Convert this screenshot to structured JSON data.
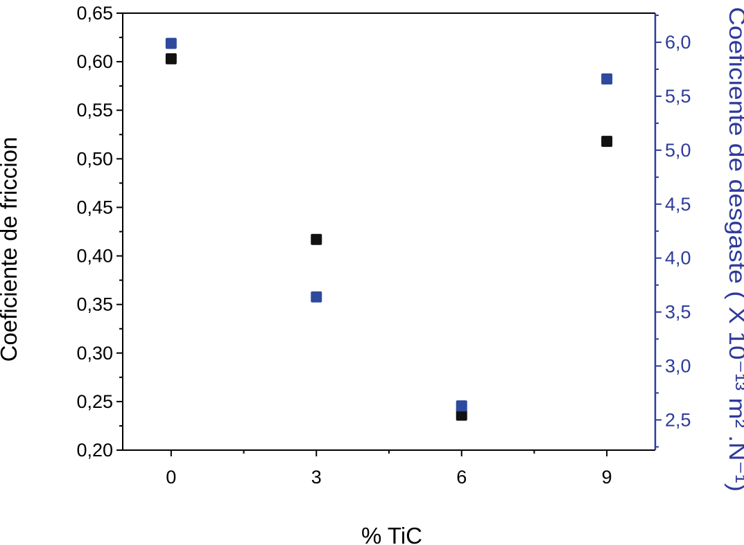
{
  "chart_data": {
    "type": "scatter",
    "title": "",
    "xlabel": "% TiC",
    "ylabel_left": "Coeficiente de friccion",
    "ylabel_right": "Coeficiente de desgaste ( X 10⁻¹³ m² .N⁻¹)",
    "x": [
      0,
      3,
      6,
      9
    ],
    "x_ticks": [
      "0",
      "3",
      "6",
      "9"
    ],
    "xlim": [
      -1,
      10
    ],
    "ylim_left": [
      0.2,
      0.65
    ],
    "y_ticks_left": [
      "0,20",
      "0,25",
      "0,30",
      "0,35",
      "0,40",
      "0,45",
      "0,50",
      "0,55",
      "0,60",
      "0,65"
    ],
    "ylim_right": [
      2.22,
      6.27
    ],
    "y_ticks_right": [
      "2,5",
      "3,0",
      "3,5",
      "4,0",
      "4,5",
      "5,0",
      "5,5",
      "6,0"
    ],
    "series": [
      {
        "axis": "left",
        "color": "#111111",
        "marker": "square",
        "values": [
          0.603,
          0.417,
          0.236,
          0.518
        ]
      },
      {
        "axis": "right",
        "color": "#2e4a9e",
        "marker": "square",
        "values": [
          5.99,
          3.64,
          2.63,
          5.66
        ]
      }
    ],
    "grid": false,
    "colors": {
      "axis_left": "#000000",
      "axis_right": "#2e3a9a"
    }
  }
}
